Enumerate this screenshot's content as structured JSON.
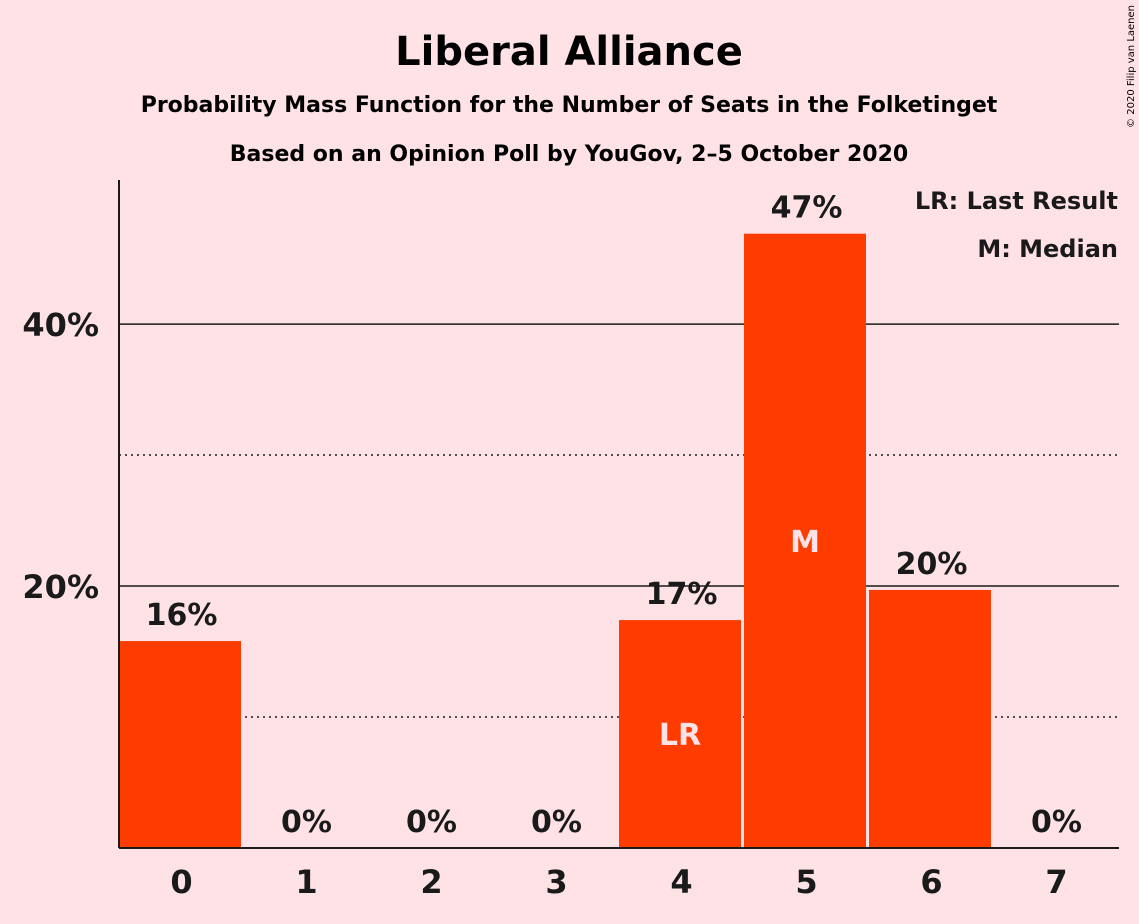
{
  "chart_data": {
    "type": "bar",
    "title": "Liberal Alliance",
    "subtitle": "Probability Mass Function for the Number of Seats in the Folketinget",
    "subtitle2": "Based on an Opinion Poll by YouGov, 2–5 October 2020",
    "categories": [
      "0",
      "1",
      "2",
      "3",
      "4",
      "5",
      "6",
      "7"
    ],
    "values": [
      15.8,
      0,
      0,
      0,
      17.4,
      46.9,
      19.7,
      0
    ],
    "value_labels": [
      "16%",
      "0%",
      "0%",
      "0%",
      "17%",
      "47%",
      "20%",
      "0%"
    ],
    "bar_markers": {
      "4": "LR",
      "5": "M"
    },
    "ylim": [
      0,
      51
    ],
    "yticks": [
      {
        "value": 20,
        "label": "20%"
      },
      {
        "value": 40,
        "label": "40%"
      }
    ],
    "minor_gridlines": [
      10,
      30
    ],
    "legend": [
      "LR: Last Result",
      "M: Median"
    ],
    "legend_position": "top-right",
    "colors": {
      "bar": "#ff3c00",
      "background": "#ffe2e6",
      "text": "#1a1a1a",
      "grid": "#1a1a1a"
    },
    "copyright": "© 2020 Filip van Laenen"
  }
}
